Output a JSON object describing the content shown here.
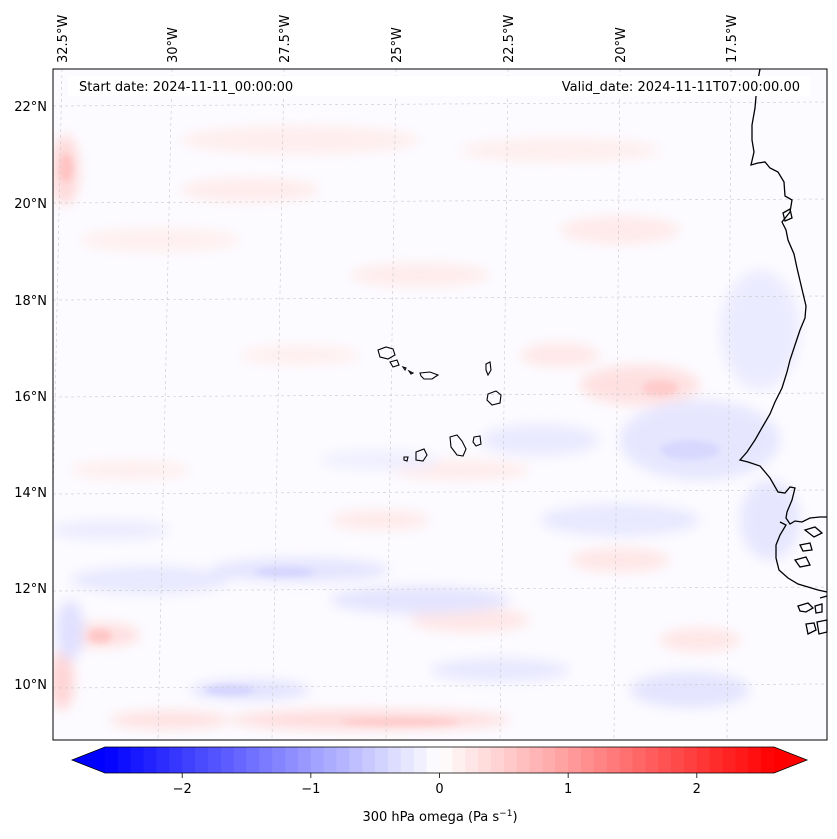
{
  "header": {
    "start_date": "Start date: 2024-11-11_00:00:00",
    "valid_date": "Valid_date: 2024-11-11T07:00:00.00"
  },
  "map": {
    "lon_labels": [
      "32.5°W",
      "30°W",
      "27.5°W",
      "25°W",
      "22.5°W",
      "20°W",
      "17.5°W"
    ],
    "lat_labels": [
      "22°N",
      "20°N",
      "18°N",
      "16°N",
      "14°N",
      "12°N",
      "10°N"
    ],
    "gridlines": "dashed",
    "features": [
      "Cape Verde islands",
      "West African coastline"
    ]
  },
  "colorbar": {
    "label": "300 hPa omega (Pa s",
    "label_sup": "−1",
    "label_end": ")",
    "ticks": [
      "−2",
      "−1",
      "0",
      "1",
      "2"
    ],
    "tick_values": [
      -2,
      -1,
      0,
      1,
      2
    ],
    "range": [
      -2.6,
      2.6
    ],
    "colormap": "bwr",
    "extend": "both",
    "low_color": "#0000ff",
    "mid_color": "#ffffff",
    "high_color": "#ff0000"
  }
}
